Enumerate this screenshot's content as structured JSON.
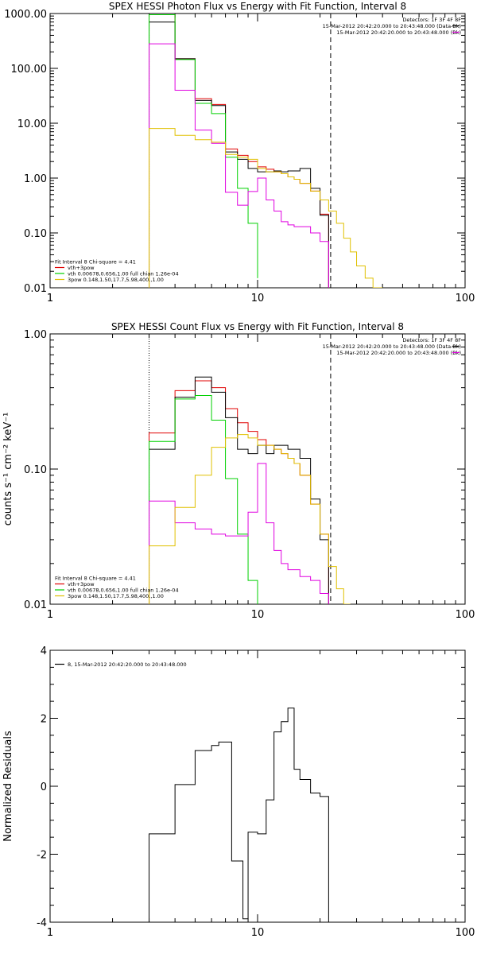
{
  "colors": {
    "black": "#000000",
    "red": "#e00000",
    "green": "#00d000",
    "magenta": "#e000e0",
    "yellow": "#e0c000",
    "white": "#ffffff"
  },
  "chart_data": [
    {
      "type": "line",
      "title": "SPEX HESSI Photon Flux vs Energy with Fit Function, Interval 8",
      "xlabel": "",
      "ylabel": "",
      "xscale": "log",
      "yscale": "log",
      "xlim": [
        1,
        100
      ],
      "ylim": [
        0.01,
        1000
      ],
      "xticks": [
        {
          "v": 1,
          "label": "1"
        },
        {
          "v": 10,
          "label": "10"
        },
        {
          "v": 100,
          "label": "100"
        }
      ],
      "yticks": [
        {
          "v": 1000,
          "label": "1000.00"
        },
        {
          "v": 100,
          "label": "100.00"
        },
        {
          "v": 10,
          "label": "10.00"
        },
        {
          "v": 1,
          "label": "1.00"
        },
        {
          "v": 0.1,
          "label": "0.10"
        },
        {
          "v": 0.01,
          "label": "0.01"
        }
      ],
      "vlines": [
        {
          "x": 3.0,
          "style": "dotted"
        },
        {
          "x": 22.5,
          "style": "dashed"
        }
      ],
      "info_lines": [
        {
          "text": "Detectors: 1F 3F 4F 8F",
          "color": "black",
          "line": false
        },
        {
          "text": "15-Mar-2012 20:42:20.000 to 20:43:48.000 (Data-Bk)",
          "color": "black",
          "line": true
        },
        {
          "text": "15-Mar-2012 20:42:20.000 to 20:43:48.000 (Bk)",
          "color": "magenta",
          "line": true
        }
      ],
      "legend_lines": [
        {
          "text": "Fit Interval 8   Chi-square = 4.41",
          "color": "black",
          "line": false
        },
        {
          "text": "vth+3pow",
          "color": "red",
          "line": true
        },
        {
          "text": "vth 0.00678,0.656,1.00  full chian 1.26e-04",
          "color": "green",
          "line": true
        },
        {
          "text": "3pow 0.148,1.50,17.7,5.98,400.,1.00",
          "color": "yellow",
          "line": true
        }
      ],
      "series": [
        {
          "color": "red",
          "edges": [
            3.0,
            3.5,
            4.0,
            4.5,
            5.0,
            5.5,
            6.0,
            6.5,
            7.0,
            7.5,
            8.0,
            8.5,
            9.0,
            9.5,
            10.0,
            11.0,
            12.0,
            13.0,
            14.0,
            15.0,
            16.0,
            18.0,
            20.0,
            22.0
          ],
          "values": [
            950,
            950,
            150,
            150,
            28,
            28,
            22,
            22,
            3.4,
            3.4,
            2.6,
            2.6,
            2.0,
            2.0,
            1.6,
            1.45,
            1.3,
            1.2,
            1.05,
            0.95,
            0.8,
            0.58,
            0.22
          ]
        },
        {
          "color": "black",
          "edges": [
            3.0,
            3.5,
            4.0,
            4.5,
            5.0,
            5.5,
            6.0,
            6.5,
            7.0,
            7.5,
            8.0,
            8.5,
            9.0,
            9.5,
            10.0,
            11.0,
            12.0,
            13.0,
            14.0,
            15.0,
            16.0,
            18.0,
            20.0,
            22.0
          ],
          "values": [
            700,
            700,
            150,
            150,
            26,
            26,
            21,
            21,
            3.0,
            3.0,
            2.2,
            2.2,
            1.5,
            1.5,
            1.3,
            1.3,
            1.35,
            1.3,
            1.35,
            1.35,
            1.5,
            0.65,
            0.21
          ]
        },
        {
          "color": "green",
          "edges": [
            3.0,
            3.5,
            4.0,
            4.5,
            5.0,
            5.5,
            6.0,
            6.5,
            7.0,
            7.5,
            8.0,
            8.5,
            9.0,
            9.5,
            10.0
          ],
          "values": [
            950,
            950,
            145,
            145,
            23,
            23,
            15,
            15,
            2.4,
            2.4,
            0.65,
            0.65,
            0.15,
            0.15,
            0.015
          ]
        },
        {
          "color": "magenta",
          "edges": [
            3.0,
            3.5,
            4.0,
            4.5,
            5.0,
            5.5,
            6.0,
            6.5,
            7.0,
            7.5,
            8.0,
            8.5,
            9.0,
            9.5,
            10.0,
            11.0,
            12.0,
            13.0,
            14.0,
            15.0,
            16.0,
            18.0,
            20.0,
            22.0
          ],
          "values": [
            280,
            280,
            40,
            40,
            7.5,
            7.5,
            4.3,
            4.3,
            0.55,
            0.55,
            0.32,
            0.32,
            0.57,
            0.57,
            1.0,
            0.4,
            0.25,
            0.16,
            0.14,
            0.13,
            0.13,
            0.1,
            0.07
          ]
        },
        {
          "color": "yellow",
          "edges": [
            3.0,
            3.5,
            4.0,
            4.5,
            5.0,
            5.5,
            6.0,
            6.5,
            7.0,
            7.5,
            8.0,
            8.5,
            9.0,
            9.5,
            10.0,
            11.0,
            12.0,
            13.0,
            14.0,
            15.0,
            16.0,
            18.0,
            20.0,
            22.0,
            24.0,
            26.0,
            28.0,
            30.0,
            33.0,
            36.0,
            40.0
          ],
          "values": [
            8,
            8,
            6,
            6,
            5,
            5,
            4.5,
            4.5,
            2.7,
            2.7,
            2.4,
            2.4,
            2.2,
            2.2,
            1.5,
            1.3,
            1.3,
            1.2,
            1.05,
            0.95,
            0.8,
            0.58,
            0.4,
            0.25,
            0.15,
            0.08,
            0.045,
            0.025,
            0.015,
            0.01
          ]
        }
      ]
    },
    {
      "type": "line",
      "title": "SPEX HESSI Count Flux vs Energy with Fit Function, Interval 8",
      "xlabel": "",
      "ylabel": "counts s⁻¹ cm⁻² keV⁻¹",
      "xscale": "log",
      "yscale": "log",
      "xlim": [
        1,
        100
      ],
      "ylim": [
        0.01,
        1.0
      ],
      "xticks": [
        {
          "v": 1,
          "label": "1"
        },
        {
          "v": 10,
          "label": "10"
        },
        {
          "v": 100,
          "label": "100"
        }
      ],
      "yticks": [
        {
          "v": 1.0,
          "label": "1.00"
        },
        {
          "v": 0.1,
          "label": "0.10"
        },
        {
          "v": 0.01,
          "label": "0.01"
        }
      ],
      "vlines": [
        {
          "x": 3.0,
          "style": "dotted"
        },
        {
          "x": 22.5,
          "style": "dashed"
        }
      ],
      "info_lines": [
        {
          "text": "Detectors: 1F 3F 4F 8F",
          "color": "black",
          "line": false
        },
        {
          "text": "15-Mar-2012 20:42:20.000 to 20:43:48.000 (Data-Bk)",
          "color": "black",
          "line": true
        },
        {
          "text": "15-Mar-2012 20:42:20.000 to 20:43:48.000 (Bk)",
          "color": "magenta",
          "line": true
        }
      ],
      "legend_lines": [
        {
          "text": "Fit Interval 8   Chi-square = 4.41",
          "color": "black",
          "line": false
        },
        {
          "text": "vth+3pow",
          "color": "red",
          "line": true
        },
        {
          "text": "vth 0.00678,0.656,1.00  full chian 1.26e-04",
          "color": "green",
          "line": true
        },
        {
          "text": "3pow 0.148,1.50,17.7,5.98,400.,1.00",
          "color": "yellow",
          "line": true
        }
      ],
      "series": [
        {
          "color": "red",
          "edges": [
            3.0,
            4.0,
            5.0,
            6.0,
            7.0,
            8.0,
            9.0,
            10.0,
            11.0,
            12.0,
            13.0,
            14.0,
            15.0,
            16.0,
            18.0,
            20.0,
            22.0
          ],
          "values": [
            0.185,
            0.38,
            0.45,
            0.4,
            0.28,
            0.22,
            0.19,
            0.165,
            0.15,
            0.14,
            0.13,
            0.12,
            0.11,
            0.09,
            0.055,
            0.033
          ]
        },
        {
          "color": "black",
          "edges": [
            3.0,
            4.0,
            5.0,
            6.0,
            7.0,
            8.0,
            9.0,
            10.0,
            11.0,
            12.0,
            13.0,
            14.0,
            15.0,
            16.0,
            18.0,
            20.0,
            22.0
          ],
          "values": [
            0.14,
            0.34,
            0.48,
            0.37,
            0.24,
            0.14,
            0.13,
            0.15,
            0.13,
            0.15,
            0.15,
            0.14,
            0.14,
            0.12,
            0.06,
            0.03
          ]
        },
        {
          "color": "green",
          "edges": [
            3.0,
            4.0,
            5.0,
            6.0,
            7.0,
            8.0,
            9.0,
            10.0
          ],
          "values": [
            0.16,
            0.33,
            0.35,
            0.23,
            0.085,
            0.033,
            0.015
          ]
        },
        {
          "color": "magenta",
          "edges": [
            3.0,
            4.0,
            5.0,
            6.0,
            7.0,
            8.0,
            9.0,
            10.0,
            11.0,
            12.0,
            13.0,
            14.0,
            15.0,
            16.0,
            18.0,
            20.0,
            22.0
          ],
          "values": [
            0.058,
            0.04,
            0.036,
            0.033,
            0.032,
            0.032,
            0.048,
            0.11,
            0.04,
            0.025,
            0.02,
            0.018,
            0.018,
            0.016,
            0.015,
            0.012
          ]
        },
        {
          "color": "yellow",
          "edges": [
            3.0,
            4.0,
            5.0,
            6.0,
            7.0,
            8.0,
            9.0,
            10.0,
            11.0,
            12.0,
            13.0,
            14.0,
            15.0,
            16.0,
            18.0,
            20.0,
            22.0,
            24.0,
            26.0,
            28.0
          ],
          "values": [
            0.027,
            0.052,
            0.09,
            0.145,
            0.17,
            0.18,
            0.17,
            0.15,
            0.15,
            0.14,
            0.13,
            0.12,
            0.11,
            0.09,
            0.055,
            0.033,
            0.019,
            0.013,
            0.01
          ]
        }
      ]
    },
    {
      "type": "line",
      "title": "",
      "xlabel": "",
      "ylabel": "Normalized Residuals",
      "xscale": "log",
      "yscale": "linear",
      "xlim": [
        1,
        100
      ],
      "ylim": [
        -4,
        4
      ],
      "xticks": [
        {
          "v": 1,
          "label": "1"
        },
        {
          "v": 10,
          "label": "10"
        },
        {
          "v": 100,
          "label": "100"
        }
      ],
      "yticks": [
        {
          "v": 4,
          "label": "4"
        },
        {
          "v": 2,
          "label": "2"
        },
        {
          "v": 0,
          "label": "0"
        },
        {
          "v": -2,
          "label": "-2"
        },
        {
          "v": -4,
          "label": "-4"
        }
      ],
      "vlines": [],
      "info_lines": [],
      "legend_lines": [
        {
          "text": "8, 15-Mar-2012 20:42:20.000 to 20:43:48.000",
          "color": "black",
          "line": true
        }
      ],
      "series": [
        {
          "color": "black",
          "edges": [
            3.0,
            4.0,
            4.5,
            5.0,
            6.0,
            6.5,
            7.5,
            8.5,
            9.0,
            10.0,
            11.0,
            12.0,
            13.0,
            14.0,
            15.0,
            16.0,
            18.0,
            20.0,
            22.0
          ],
          "values": [
            -1.4,
            0.05,
            0.05,
            1.05,
            1.2,
            1.3,
            -2.2,
            -3.9,
            -1.35,
            -1.4,
            -0.4,
            1.6,
            1.9,
            2.3,
            0.5,
            0.2,
            -0.2,
            -0.3
          ]
        }
      ]
    }
  ]
}
